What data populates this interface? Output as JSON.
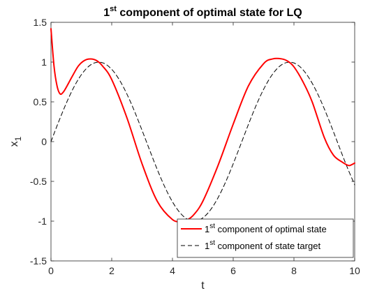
{
  "chart_data": {
    "type": "line",
    "title": {
      "main": "1",
      "sup": "st",
      "rest": " component of optimal state for LQ"
    },
    "xlabel": "t",
    "ylabel": {
      "main": "x",
      "sub": "1"
    },
    "xlim": [
      0,
      10
    ],
    "ylim": [
      -1.5,
      1.5
    ],
    "xticks": [
      0,
      2,
      4,
      6,
      8,
      10
    ],
    "yticks": [
      -1.5,
      -1,
      -0.5,
      0,
      0.5,
      1,
      1.5
    ],
    "xtick_labels": [
      "0",
      "2",
      "4",
      "6",
      "8",
      "10"
    ],
    "ytick_labels": [
      "-1.5",
      "-1",
      "-0.5",
      "0",
      "0.5",
      "1",
      "1.5"
    ],
    "grid": false,
    "legend_position": "bottom-right",
    "series": [
      {
        "name": {
          "main": "1",
          "sup": "st",
          "rest": " component of optimal state"
        },
        "color": "#ff0000",
        "style": "solid",
        "x": [
          0,
          0.1,
          0.2,
          0.3,
          0.4,
          0.5,
          0.7,
          0.9,
          1.1,
          1.3,
          1.5,
          1.7,
          2.0,
          2.5,
          3.0,
          3.5,
          4.0,
          4.3,
          4.5,
          4.7,
          5.0,
          5.5,
          6.0,
          6.5,
          7.0,
          7.3,
          7.6,
          7.8,
          8.0,
          8.3,
          8.6,
          9.0,
          9.3,
          9.6,
          9.8,
          9.9,
          10.0
        ],
        "y": [
          1.42,
          0.95,
          0.7,
          0.6,
          0.62,
          0.68,
          0.82,
          0.95,
          1.02,
          1.04,
          1.02,
          0.95,
          0.78,
          0.3,
          -0.28,
          -0.75,
          -0.98,
          -1.0,
          -0.98,
          -0.92,
          -0.75,
          -0.3,
          0.22,
          0.7,
          0.98,
          1.04,
          1.04,
          1.01,
          0.94,
          0.75,
          0.5,
          0.05,
          -0.17,
          -0.26,
          -0.3,
          -0.29,
          -0.27
        ]
      },
      {
        "name": {
          "main": "1",
          "sup": "st",
          "rest": " component of state target"
        },
        "color": "#000000",
        "style": "dashed",
        "x": [
          0,
          0.25,
          0.5,
          0.75,
          1.0,
          1.25,
          1.5,
          1.75,
          2.0,
          2.25,
          2.5,
          2.75,
          3.0,
          3.25,
          3.5,
          3.75,
          4.0,
          4.25,
          4.5,
          4.75,
          5.0,
          5.25,
          5.5,
          5.75,
          6.0,
          6.25,
          6.5,
          6.75,
          7.0,
          7.25,
          7.5,
          7.75,
          8.0,
          8.25,
          8.5,
          8.75,
          9.0,
          9.25,
          9.5,
          9.75,
          10.0
        ],
        "y": [
          0.0,
          0.247,
          0.479,
          0.682,
          0.841,
          0.949,
          0.997,
          0.984,
          0.909,
          0.778,
          0.598,
          0.382,
          0.141,
          -0.108,
          -0.351,
          -0.572,
          -0.757,
          -0.895,
          -0.978,
          -0.999,
          -0.959,
          -0.859,
          -0.706,
          -0.508,
          -0.279,
          -0.033,
          0.215,
          0.451,
          0.657,
          0.823,
          0.938,
          0.994,
          0.989,
          0.923,
          0.798,
          0.625,
          0.412,
          0.174,
          -0.075,
          -0.319,
          -0.544
        ]
      }
    ]
  }
}
